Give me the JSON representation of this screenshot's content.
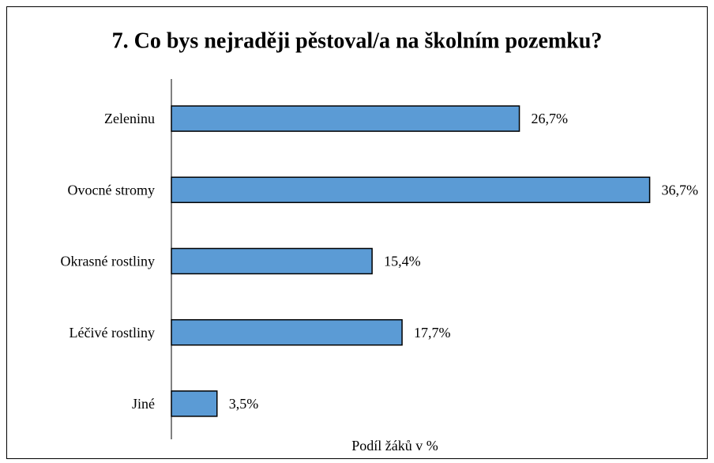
{
  "chart_data": {
    "type": "bar",
    "orientation": "horizontal",
    "title": "7. Co bys nejraději pěstoval/a na školním pozemku?",
    "x_label": "Podíl žáků v %",
    "categories": [
      "Zeleninu",
      "Ovocné stromy",
      "Okrasné rostliny",
      "Léčivé rostliny",
      "Jiné"
    ],
    "values": [
      26.7,
      36.7,
      15.4,
      17.7,
      3.5
    ],
    "value_labels": [
      "26,7%",
      "36,7%",
      "15,4%",
      "17,7%",
      "3,5%"
    ],
    "color": "#5b9bd5",
    "xlim": [
      0,
      40
    ]
  }
}
